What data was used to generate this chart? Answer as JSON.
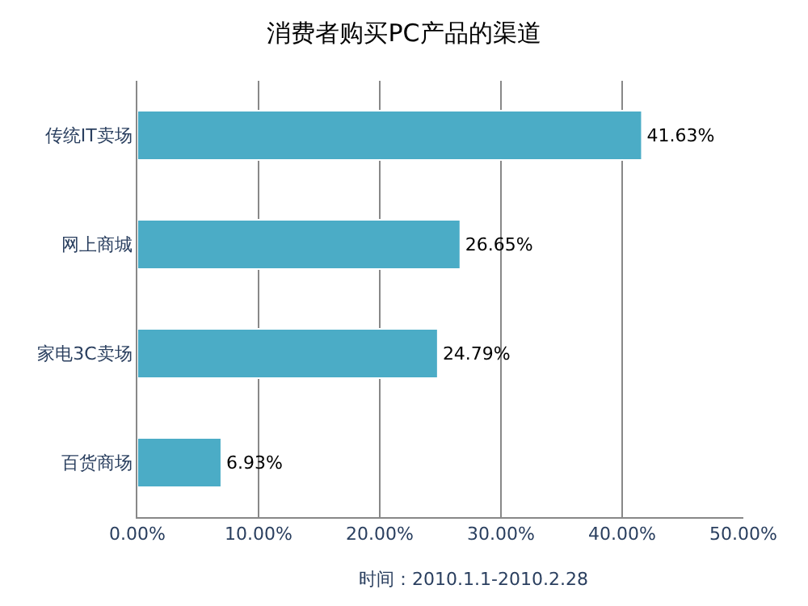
{
  "chart_data": {
    "type": "bar",
    "orientation": "horizontal",
    "title": "消费者购买PC产品的渠道",
    "categories": [
      "传统IT卖场",
      "网上商城",
      "家电3C卖场",
      "百货商场"
    ],
    "values": [
      41.63,
      26.65,
      24.79,
      6.93
    ],
    "value_labels": [
      "41.63%",
      "26.65%",
      "24.79%",
      "6.93%"
    ],
    "color": "#4bacc6",
    "xlim": [
      0,
      50
    ],
    "xticks": [
      {
        "value": 0,
        "label": "0.00%"
      },
      {
        "value": 10,
        "label": "10.00%"
      },
      {
        "value": 20,
        "label": "20.00%"
      },
      {
        "value": 30,
        "label": "30.00%"
      },
      {
        "value": 40,
        "label": "40.00%"
      },
      {
        "value": 50,
        "label": "50.00%"
      }
    ],
    "grid": "x",
    "legend": false,
    "annotations": [
      "时间：2010.1.1-2010.2.28"
    ]
  }
}
